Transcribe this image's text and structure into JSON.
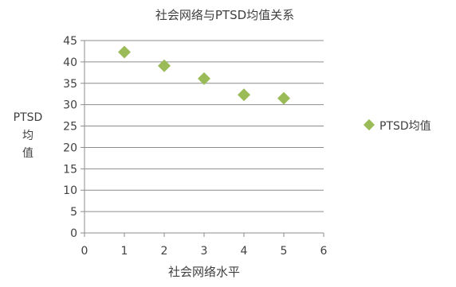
{
  "chart_data": {
    "type": "scatter",
    "title": "社会网络与PTSD均值关系",
    "xlabel": "社会网络水平",
    "ylabel_lines": [
      "PTSD",
      "均",
      "值"
    ],
    "xlim": [
      0,
      6
    ],
    "ylim": [
      0,
      45
    ],
    "x_ticks": [
      0,
      1,
      2,
      3,
      4,
      5,
      6
    ],
    "y_ticks": [
      0,
      5,
      10,
      15,
      20,
      25,
      30,
      35,
      40,
      45
    ],
    "grid": "horizontal",
    "legend_position": "right",
    "marker": "diamond",
    "series": [
      {
        "name": "PTSD均值",
        "color": "#9BBB59",
        "points": [
          {
            "x": 1,
            "y": 42.3
          },
          {
            "x": 2,
            "y": 39.1
          },
          {
            "x": 3,
            "y": 36.1
          },
          {
            "x": 4,
            "y": 32.3
          },
          {
            "x": 5,
            "y": 31.5
          }
        ]
      }
    ]
  }
}
